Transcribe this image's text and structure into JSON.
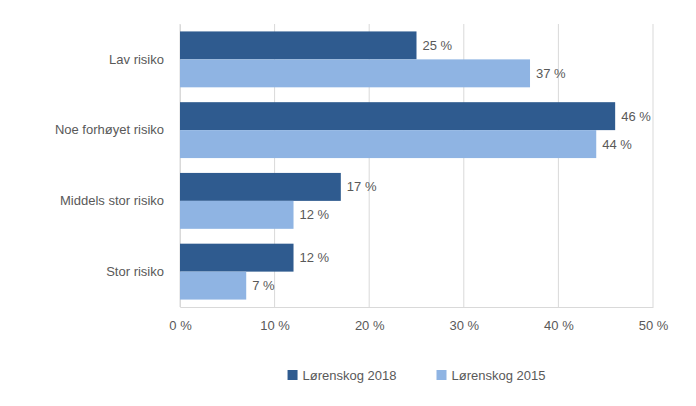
{
  "chart_data": {
    "type": "bar",
    "orientation": "horizontal",
    "categories": [
      "Lav risiko",
      "Noe forhøyet risiko",
      "Middels stor risiko",
      "Stor risiko"
    ],
    "series": [
      {
        "name": "Lørenskog 2018",
        "color": "#2f5b8f",
        "values": [
          25,
          46,
          17,
          12
        ],
        "value_labels": [
          "25 %",
          "46 %",
          "17 %",
          "12 %"
        ]
      },
      {
        "name": "Lørenskog 2015",
        "color": "#8fb4e3",
        "values": [
          37,
          44,
          12,
          7
        ],
        "value_labels": [
          "37 %",
          "44 %",
          "12 %",
          "7 %"
        ]
      }
    ],
    "xlim": [
      0,
      50
    ],
    "xticks": [
      {
        "value": 0,
        "label": "0 %"
      },
      {
        "value": 10,
        "label": "10 %"
      },
      {
        "value": 20,
        "label": "20 %"
      },
      {
        "value": 30,
        "label": "30 %"
      },
      {
        "value": 40,
        "label": "40 %"
      },
      {
        "value": 50,
        "label": "50 %"
      }
    ],
    "grid": true,
    "data_labels": true,
    "legend": "bottom"
  }
}
